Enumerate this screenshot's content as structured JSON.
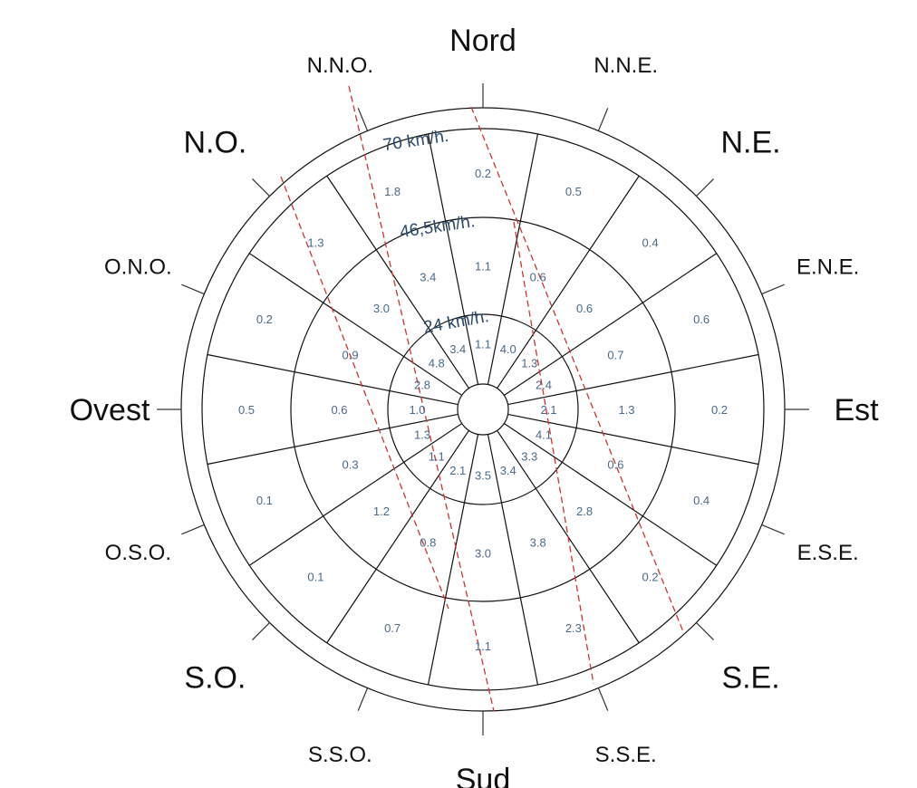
{
  "chart_data": {
    "type": "wind-rose",
    "directions": [
      "Nord",
      "N.N.E.",
      "N.E.",
      "E.N.E.",
      "Est",
      "E.S.E.",
      "S.E.",
      "S.S.E.",
      "Sud",
      "S.S.O.",
      "S.O.",
      "O.S.O.",
      "Ovest",
      "O.N.O.",
      "N.O.",
      "N.N.O."
    ],
    "ring_labels": [
      "24 km/h.",
      "46,5km/h.",
      "70 km/h."
    ],
    "series": [
      {
        "values": [
          1.1,
          4.0,
          1.3,
          2.4,
          2.1,
          4.1,
          3.3,
          3.4,
          3.5,
          2.1,
          1.1,
          1.3,
          1.0,
          2.8,
          4.8,
          3.4
        ]
      },
      {
        "values": [
          1.1,
          0.6,
          0.6,
          0.7,
          1.3,
          0.6,
          2.8,
          3.8,
          3.0,
          0.8,
          1.2,
          0.3,
          0.6,
          0.9,
          3.0,
          3.4
        ]
      },
      {
        "values": [
          0.2,
          0.5,
          0.4,
          0.6,
          0.2,
          0.4,
          0.2,
          2.3,
          1.1,
          0.7,
          0.1,
          0.1,
          0.5,
          0.2,
          1.3,
          1.8
        ]
      }
    ]
  }
}
